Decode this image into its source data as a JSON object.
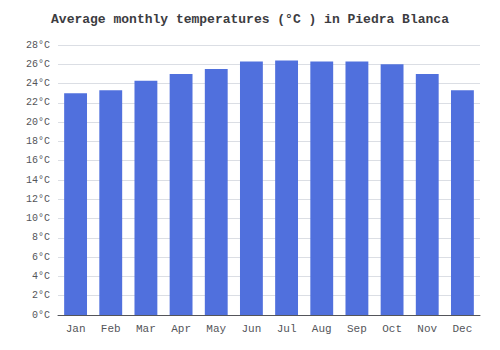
{
  "chart_data": {
    "type": "bar",
    "title": "Average monthly temperatures (°C ) in Piedra Blanca",
    "categories": [
      "Jan",
      "Feb",
      "Mar",
      "Apr",
      "May",
      "Jun",
      "Jul",
      "Aug",
      "Sep",
      "Oct",
      "Nov",
      "Dec"
    ],
    "values": [
      23.0,
      23.3,
      24.3,
      25.0,
      25.5,
      26.3,
      26.4,
      26.3,
      26.3,
      26.0,
      25.0,
      23.3
    ],
    "ylim": [
      0,
      28
    ],
    "yticks": [
      {
        "value": 0,
        "label": "0°C"
      },
      {
        "value": 2,
        "label": "2°C"
      },
      {
        "value": 4,
        "label": "4°C"
      },
      {
        "value": 6,
        "label": "6°C"
      },
      {
        "value": 8,
        "label": "8°C"
      },
      {
        "value": 10,
        "label": "10°C"
      },
      {
        "value": 12,
        "label": "12°C"
      },
      {
        "value": 14,
        "label": "14°C"
      },
      {
        "value": 16,
        "label": "16°C"
      },
      {
        "value": 18,
        "label": "18°C"
      },
      {
        "value": 20,
        "label": "20°C"
      },
      {
        "value": 22,
        "label": "22°C"
      },
      {
        "value": 24,
        "label": "24°C"
      },
      {
        "value": 26,
        "label": "26°C"
      },
      {
        "value": 28,
        "label": "28°C"
      }
    ],
    "grid": true
  }
}
